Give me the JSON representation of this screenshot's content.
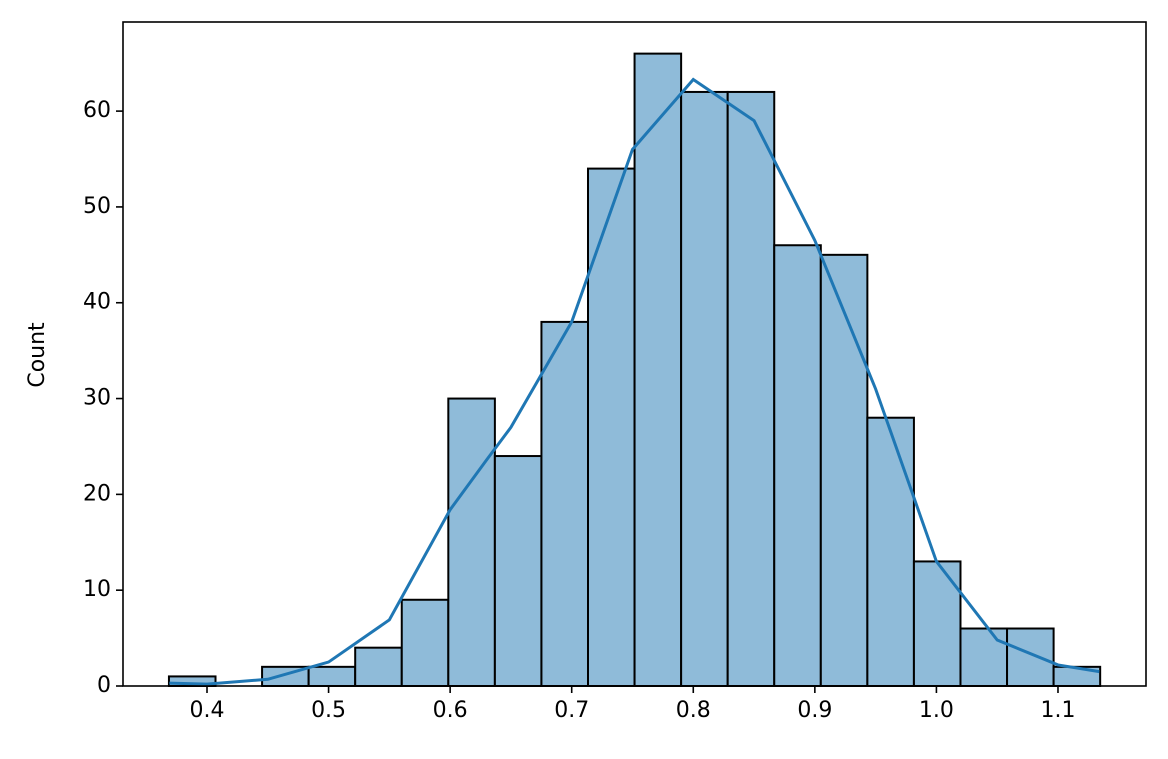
{
  "chart_data": {
    "type": "histogram",
    "ylabel": "Count",
    "bins": [
      0.3687,
      0.407,
      0.4453,
      0.4836,
      0.5219,
      0.5602,
      0.5985,
      0.6368,
      0.6751,
      0.7134,
      0.7517,
      0.79,
      0.8283,
      0.8666,
      0.9049,
      0.9432,
      0.9815,
      1.0198,
      1.0581,
      1.0964,
      1.1347
    ],
    "counts": [
      1,
      0,
      2,
      2,
      4,
      9,
      30,
      24,
      38,
      54,
      66,
      62,
      62,
      46,
      45,
      28,
      13,
      6,
      6,
      2
    ],
    "color": "#8fbbd9",
    "edgecolor": "#000000",
    "kde": {
      "color": "#1f77b4",
      "x": [
        0.369,
        0.4,
        0.45,
        0.5,
        0.55,
        0.6,
        0.63,
        0.65,
        0.7,
        0.75,
        0.8,
        0.85,
        0.9,
        0.95,
        1.0,
        1.05,
        1.1,
        1.134
      ],
      "y": [
        0.3,
        0.2,
        0.7,
        2.5,
        6.9,
        18.4,
        23.6,
        27,
        38,
        56,
        63.3,
        59,
        46.5,
        31,
        13,
        4.8,
        2.2,
        1.5
      ]
    },
    "xlim": [
      0.3309,
      1.1724
    ],
    "ylim": [
      0,
      69.3
    ],
    "xticks": [
      0.4,
      0.5,
      0.6,
      0.7,
      0.8,
      0.9,
      {
        "value": 1,
        "label": "1.0"
      },
      1.1
    ],
    "yticks": [
      0,
      10,
      20,
      30,
      40,
      50,
      60
    ]
  }
}
